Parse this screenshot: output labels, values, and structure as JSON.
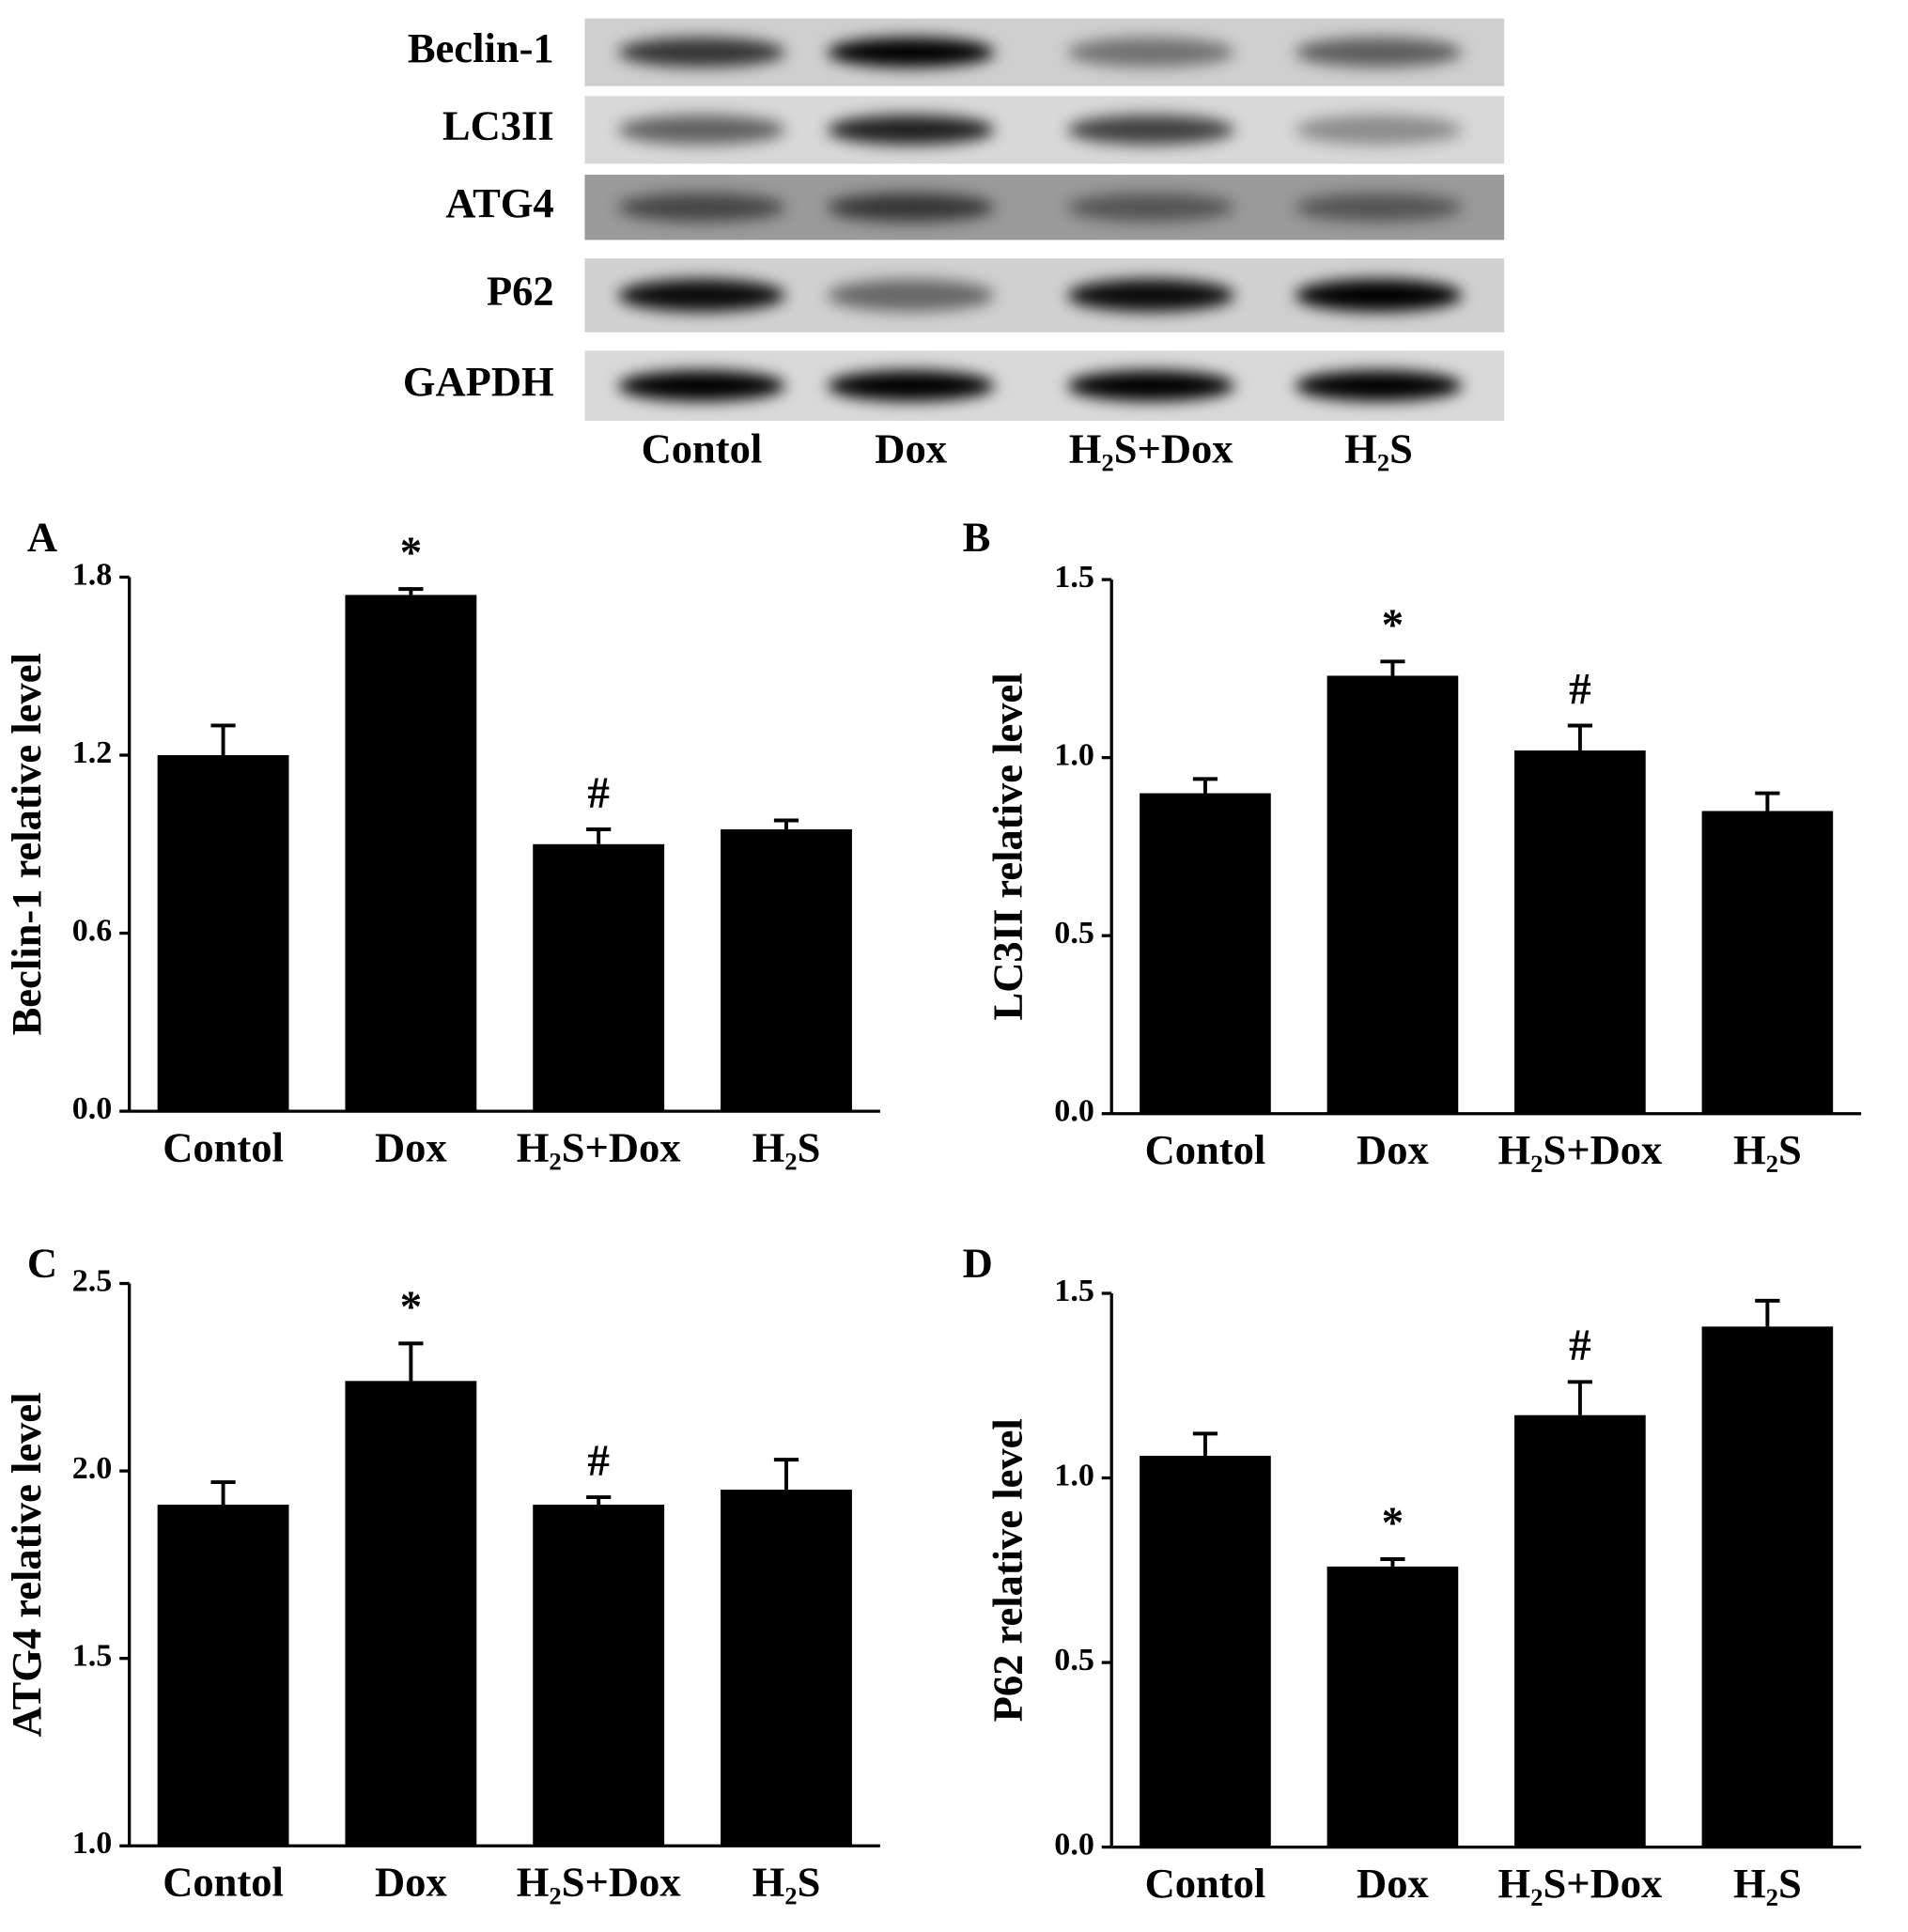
{
  "blot": {
    "proteins": [
      "Beclin-1",
      "LC3II",
      "ATG4",
      "P62",
      "GAPDH"
    ],
    "lanes": [
      "Contol",
      "Dox",
      "H₂S+Dox",
      "H₂S"
    ]
  },
  "chart_data": [
    {
      "type": "bar",
      "panel": "A",
      "ylabel": "Beclin-1 relative level",
      "categories": [
        "Contol",
        "Dox",
        "H₂S+Dox",
        "H₂S"
      ],
      "values": [
        1.2,
        1.74,
        0.9,
        0.95
      ],
      "errors": [
        0.1,
        0.02,
        0.05,
        0.03
      ],
      "markers": [
        null,
        "*",
        "#",
        null
      ],
      "color": "#000000",
      "ylim": [
        0,
        1.8
      ],
      "yticks": [
        {
          "value": 0,
          "label": "0.0"
        },
        0.6,
        1.2,
        1.8
      ]
    },
    {
      "type": "bar",
      "panel": "B",
      "ylabel": "LC3II relative level",
      "categories": [
        "Contol",
        "Dox",
        "H₂S+Dox",
        "H₂S"
      ],
      "values": [
        0.9,
        1.23,
        1.02,
        0.85
      ],
      "errors": [
        0.04,
        0.04,
        0.07,
        0.05
      ],
      "markers": [
        null,
        "*",
        "#",
        null
      ],
      "color": "#000000",
      "ylim": [
        0,
        1.5
      ],
      "yticks": [
        {
          "value": 0,
          "label": "0.0"
        },
        0.5,
        {
          "value": 1,
          "label": "1.0"
        },
        1.5
      ]
    },
    {
      "type": "bar",
      "panel": "C",
      "ylabel": "ATG4 relative level",
      "categories": [
        "Contol",
        "Dox",
        "H₂S+Dox",
        "H₂S"
      ],
      "values": [
        1.91,
        2.24,
        1.91,
        1.95
      ],
      "errors": [
        0.06,
        0.1,
        0.02,
        0.08
      ],
      "markers": [
        null,
        "*",
        "#",
        null
      ],
      "color": "#000000",
      "ylim": [
        1,
        2.5
      ],
      "yticks": [
        {
          "value": 1,
          "label": "1.0"
        },
        1.5,
        {
          "value": 2,
          "label": "2.0"
        },
        2.5
      ]
    },
    {
      "type": "bar",
      "panel": "D",
      "ylabel": "P62 relative level",
      "categories": [
        "Contol",
        "Dox",
        "H₂S+Dox",
        "H₂S"
      ],
      "values": [
        1.06,
        0.76,
        1.17,
        1.41
      ],
      "errors": [
        0.06,
        0.02,
        0.09,
        0.07
      ],
      "markers": [
        null,
        "*",
        "#",
        null
      ],
      "color": "#000000",
      "ylim": [
        0,
        1.5
      ],
      "yticks": [
        {
          "value": 0,
          "label": "0.0"
        },
        0.5,
        {
          "value": 1,
          "label": "1.0"
        },
        1.5
      ]
    }
  ]
}
